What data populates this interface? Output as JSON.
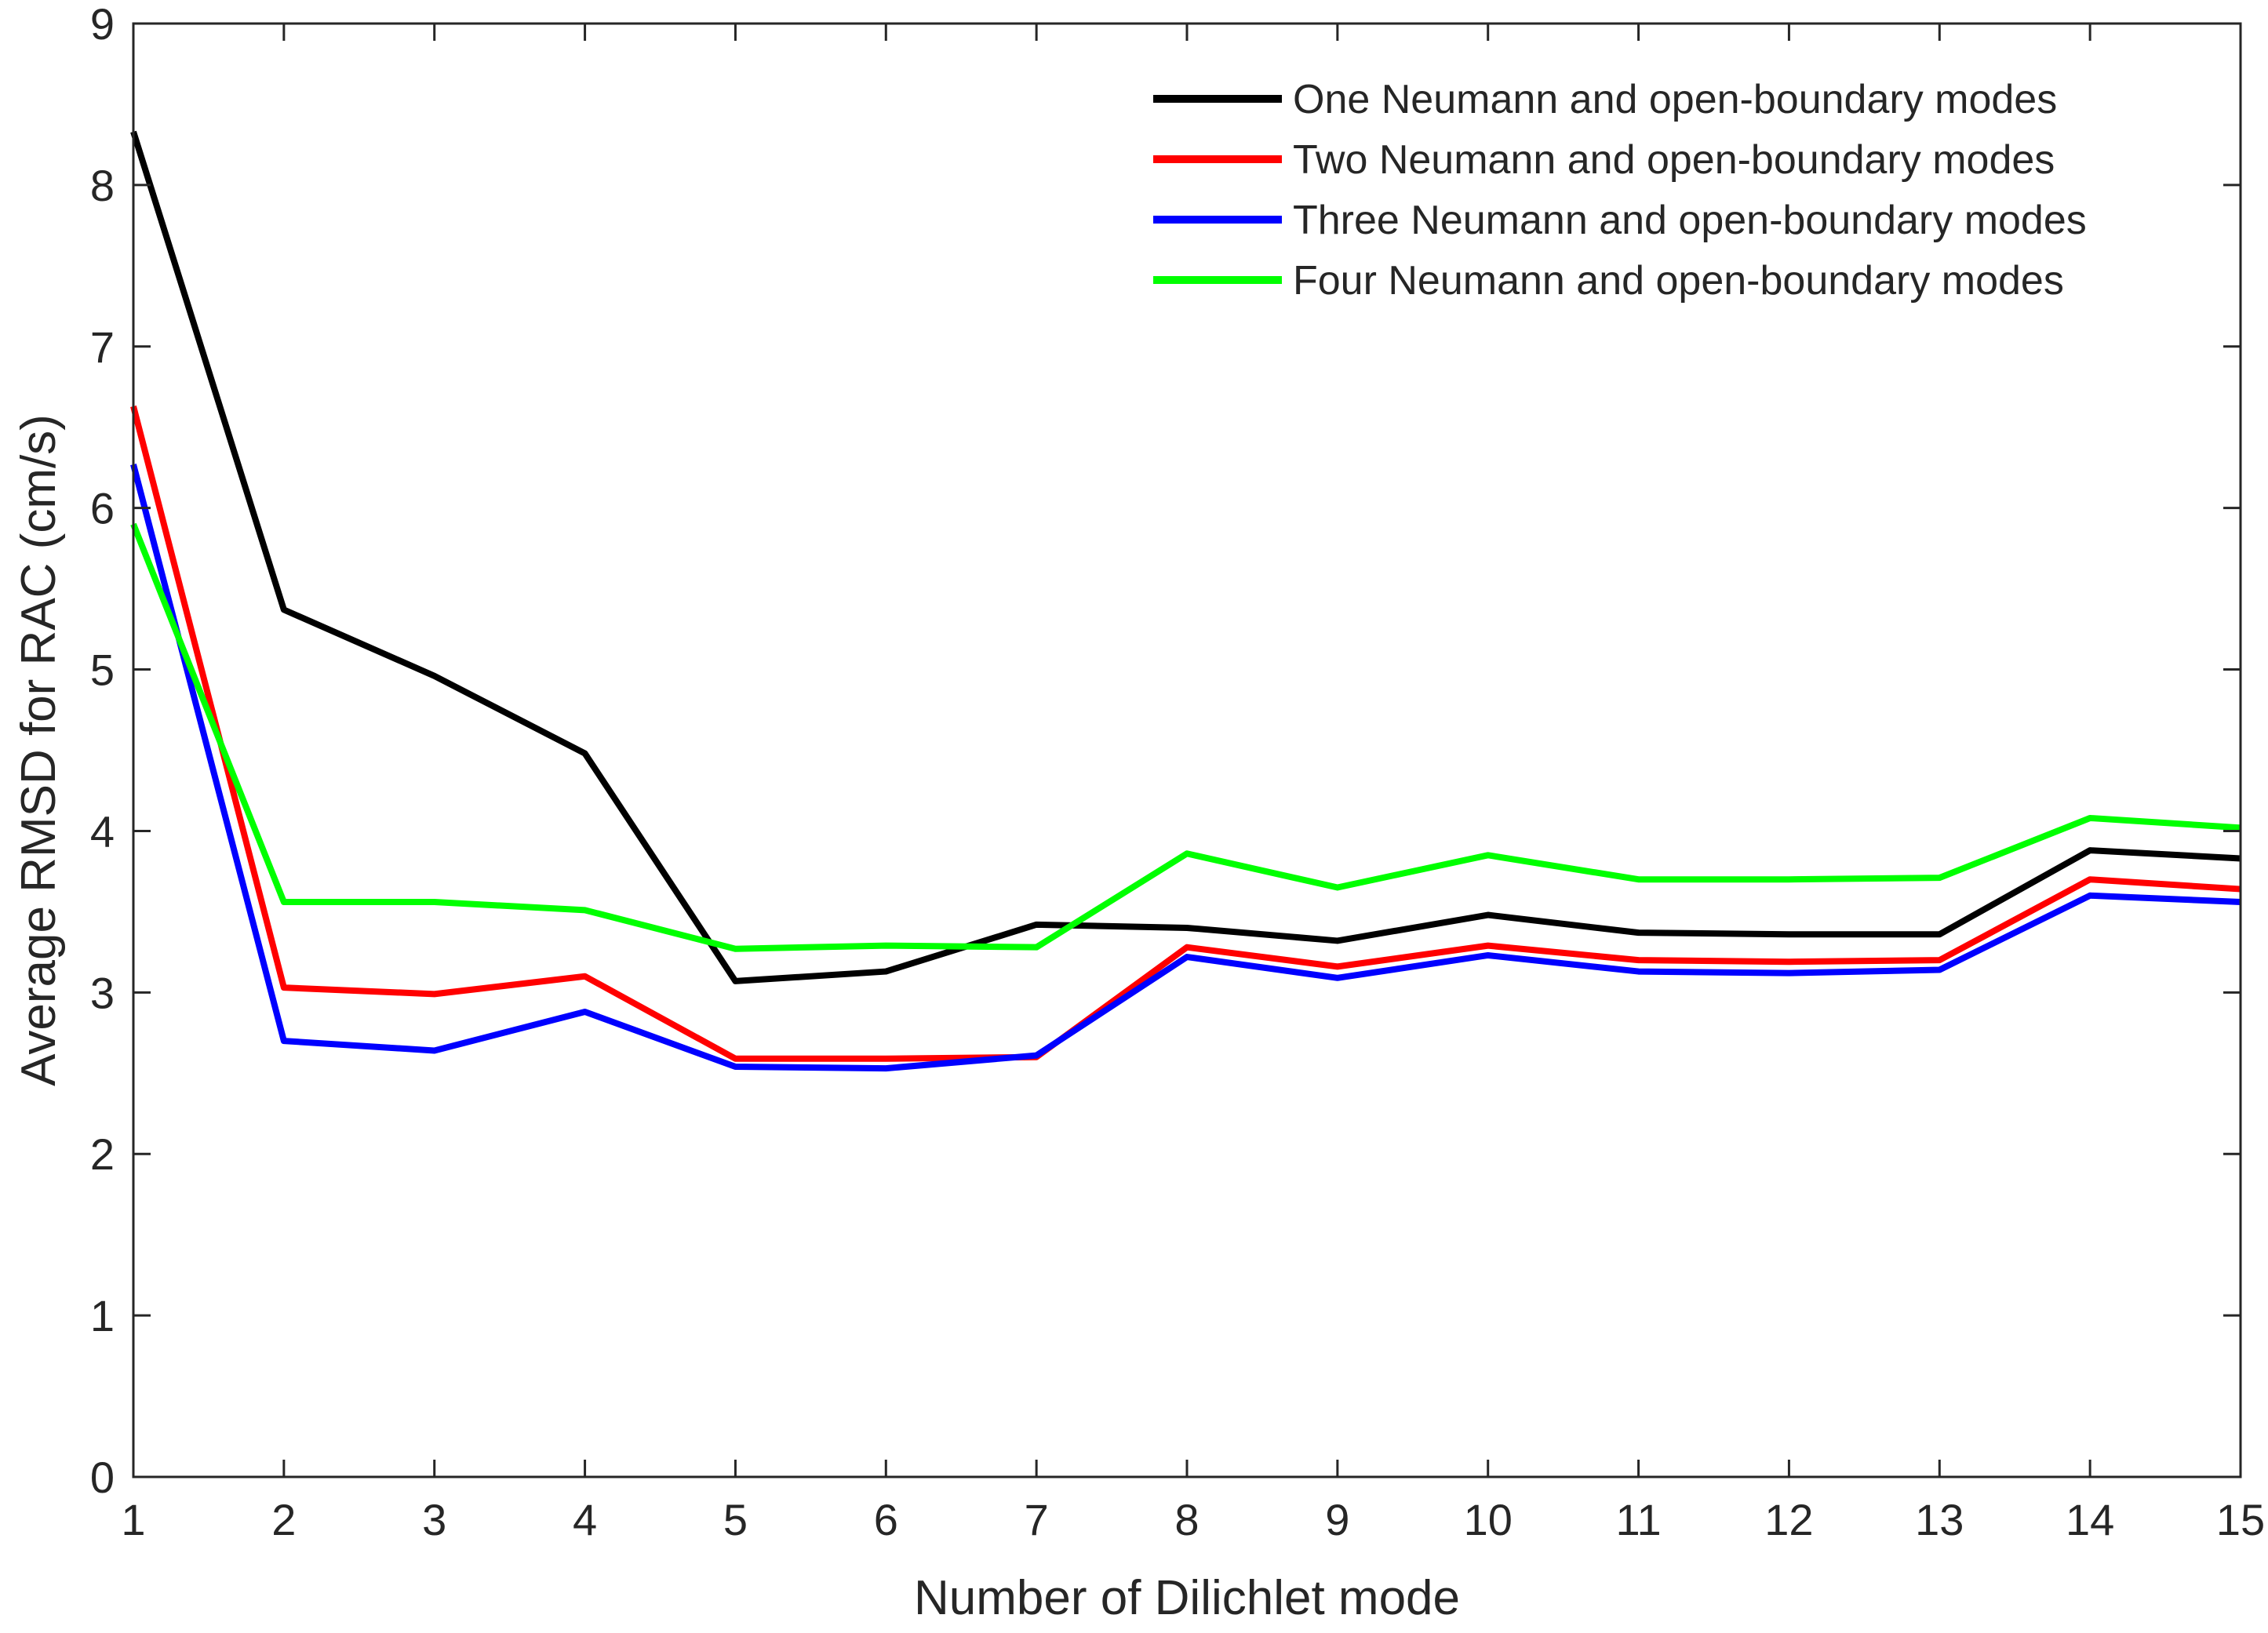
{
  "chart_data": {
    "type": "line",
    "title": "",
    "xlabel": "Number of Dilichlet mode",
    "ylabel": "Average RMSD for RAC (cm/s)",
    "xlim": [
      1,
      15
    ],
    "ylim": [
      0,
      9
    ],
    "x_ticks": [
      "1",
      "2",
      "3",
      "4",
      "5",
      "6",
      "7",
      "8",
      "9",
      "10",
      "11",
      "12",
      "13",
      "14",
      "15"
    ],
    "y_ticks": [
      "0",
      "1",
      "2",
      "3",
      "4",
      "5",
      "6",
      "7",
      "8",
      "9"
    ],
    "x": [
      1,
      2,
      3,
      4,
      5,
      6,
      7,
      8,
      9,
      10,
      11,
      12,
      13,
      14,
      15
    ],
    "legend_position": "top-right",
    "grid": false,
    "series": [
      {
        "name": "One Neumann and open-boundary modes",
        "color": "#000000",
        "values": [
          8.33,
          5.37,
          4.96,
          4.48,
          3.07,
          3.13,
          3.42,
          3.4,
          3.32,
          3.48,
          3.37,
          3.36,
          3.36,
          3.88,
          3.83
        ]
      },
      {
        "name": "Two Neumann and open-boundary modes",
        "color": "#ff0000",
        "values": [
          6.63,
          3.03,
          2.99,
          3.1,
          2.59,
          2.59,
          2.6,
          3.28,
          3.16,
          3.29,
          3.2,
          3.19,
          3.2,
          3.7,
          3.64
        ]
      },
      {
        "name": "Three Neumann and open-boundary modes",
        "color": "#0000ff",
        "values": [
          6.27,
          2.7,
          2.64,
          2.88,
          2.54,
          2.53,
          2.61,
          3.22,
          3.09,
          3.23,
          3.13,
          3.12,
          3.14,
          3.6,
          3.56
        ]
      },
      {
        "name": "Four Neumann and open-boundary modes",
        "color": "#00ff00",
        "values": [
          5.9,
          3.56,
          3.56,
          3.51,
          3.27,
          3.29,
          3.28,
          3.86,
          3.65,
          3.85,
          3.7,
          3.7,
          3.71,
          4.08,
          4.02
        ]
      }
    ]
  }
}
